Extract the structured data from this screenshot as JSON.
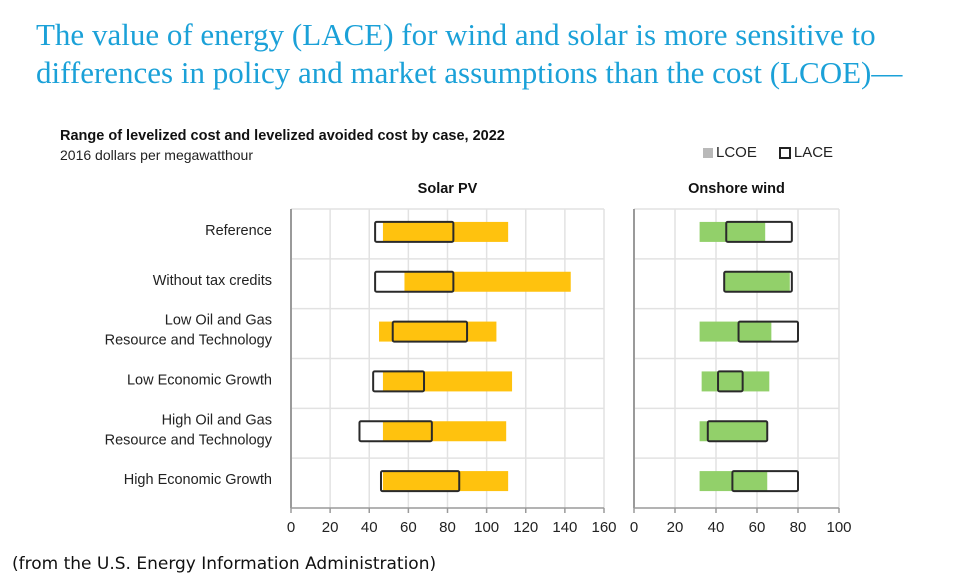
{
  "headline": "The value of energy (LACE) for wind and solar is more sensitive to differences in policy and market assumptions than the cost (LCOE)—",
  "footer": "(from the U.S. Energy Information Administration)",
  "chart_data": {
    "type": "bar",
    "subtype": "range-bar",
    "title": "Range of levelized cost and levelized avoided cost by case, 2022",
    "subtitle": "2016 dollars per megawatthour",
    "legend": [
      {
        "name": "LCOE",
        "style": "filled",
        "color": "#b9b9b9"
      },
      {
        "name": "LACE",
        "style": "outline",
        "color": "#222222"
      }
    ],
    "legend_position": "top-right",
    "categories": [
      [
        "Reference"
      ],
      [
        "Without tax credits"
      ],
      [
        "Low Oil and Gas",
        "Resource and Technology"
      ],
      [
        "Low Economic Growth"
      ],
      [
        "High Oil and Gas",
        "Resource and Technology"
      ],
      [
        "High Economic Growth"
      ]
    ],
    "grid": true,
    "panels": [
      {
        "title": "Solar PV",
        "color": "#FFC20E",
        "xlim": [
          0,
          160
        ],
        "xticks": [
          0,
          20,
          40,
          60,
          80,
          100,
          120,
          140,
          160
        ],
        "series": [
          {
            "name": "LCOE",
            "ranges": [
              [
                47,
                111
              ],
              [
                58,
                143
              ],
              [
                45,
                105
              ],
              [
                47,
                113
              ],
              [
                47,
                110
              ],
              [
                47,
                111
              ]
            ]
          },
          {
            "name": "LACE",
            "ranges": [
              [
                43,
                83
              ],
              [
                43,
                83
              ],
              [
                52,
                90
              ],
              [
                42,
                68
              ],
              [
                35,
                72
              ],
              [
                46,
                86
              ]
            ]
          }
        ]
      },
      {
        "title": "Onshore wind",
        "color": "#92D06A",
        "xlim": [
          0,
          100
        ],
        "xticks": [
          0,
          20,
          40,
          60,
          80,
          100
        ],
        "series": [
          {
            "name": "LCOE",
            "ranges": [
              [
                32,
                64
              ],
              [
                44,
                76
              ],
              [
                32,
                67
              ],
              [
                33,
                66
              ],
              [
                32,
                65
              ],
              [
                32,
                65
              ]
            ]
          },
          {
            "name": "LACE",
            "ranges": [
              [
                45,
                77
              ],
              [
                44,
                77
              ],
              [
                51,
                80
              ],
              [
                41,
                53
              ],
              [
                36,
                65
              ],
              [
                48,
                80
              ]
            ]
          }
        ]
      }
    ]
  }
}
